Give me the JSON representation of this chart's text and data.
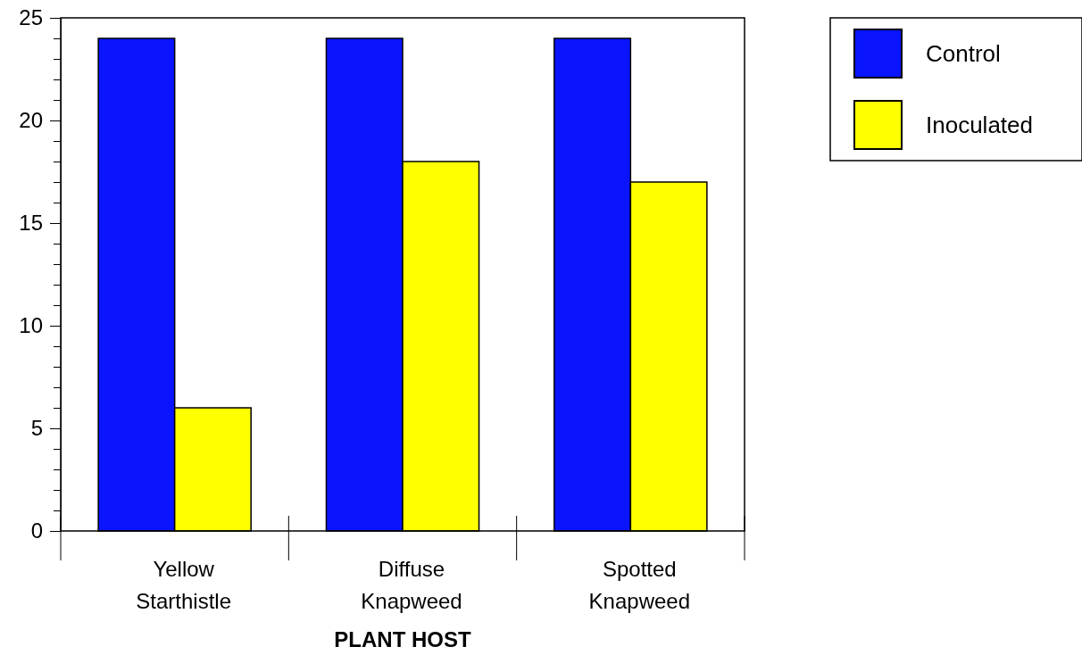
{
  "chart_data": {
    "type": "bar",
    "xlabel": "PLANT HOST",
    "categories": [
      "Yellow Starthistle",
      "Diffuse Knapweed",
      "Spotted Knapweed"
    ],
    "series": [
      {
        "name": "Control",
        "color": "#0a14ff",
        "values": [
          24,
          24,
          24
        ]
      },
      {
        "name": "Inoculated",
        "color": "#ffff00",
        "values": [
          6,
          18,
          17
        ]
      }
    ],
    "ylim": [
      0,
      25
    ],
    "yticks": [
      0,
      {
        "value": 1,
        "label": null
      },
      {
        "value": 2,
        "label": null
      },
      {
        "value": 3,
        "label": null
      },
      {
        "value": 4,
        "label": null
      },
      5,
      {
        "value": 6,
        "label": null
      },
      {
        "value": 7,
        "label": null
      },
      {
        "value": 8,
        "label": null
      },
      {
        "value": 9,
        "label": null
      },
      10,
      {
        "value": 11,
        "label": null
      },
      {
        "value": 12,
        "label": null
      },
      {
        "value": 13,
        "label": null
      },
      {
        "value": 14,
        "label": null
      },
      15,
      {
        "value": 16,
        "label": null
      },
      {
        "value": 17,
        "label": null
      },
      {
        "value": 18,
        "label": null
      },
      {
        "value": 19,
        "label": null
      },
      20,
      {
        "value": 21,
        "label": null
      },
      {
        "value": 22,
        "label": null
      },
      {
        "value": 23,
        "label": null
      },
      {
        "value": 24,
        "label": null
      },
      25
    ],
    "grid": false,
    "legend": "top right"
  }
}
